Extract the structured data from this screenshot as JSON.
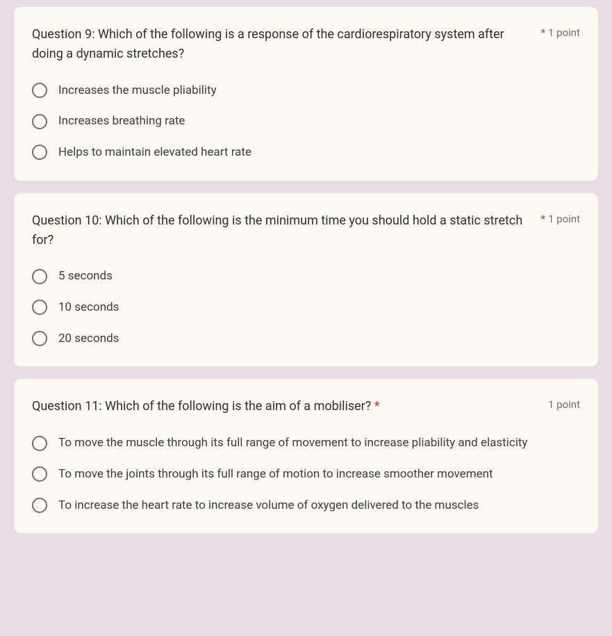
{
  "questions": [
    {
      "title": "Question 9: Which of the following is a response of the cardiorespiratory system after doing a dynamic stretches?",
      "required": true,
      "points": "1 point",
      "options": [
        "Increases the muscle pliability",
        "Increases breathing rate",
        "Helps to maintain elevated heart rate"
      ]
    },
    {
      "title": "Question 10: Which of the following is the minimum time you should hold a static stretch for?",
      "required": true,
      "points": "1 point",
      "options": [
        "5 seconds",
        "10 seconds",
        "20 seconds"
      ]
    },
    {
      "title": "Question 11: Which of the following is the aim of a mobiliser?",
      "required": true,
      "points": "1 point",
      "options": [
        "To move the muscle through its full range of movement to increase pliability and elasticity",
        "To move the joints through its full range of motion to increase smoother movement",
        "To increase the heart rate to increase volume of oxygen delivered to the muscles"
      ]
    }
  ]
}
